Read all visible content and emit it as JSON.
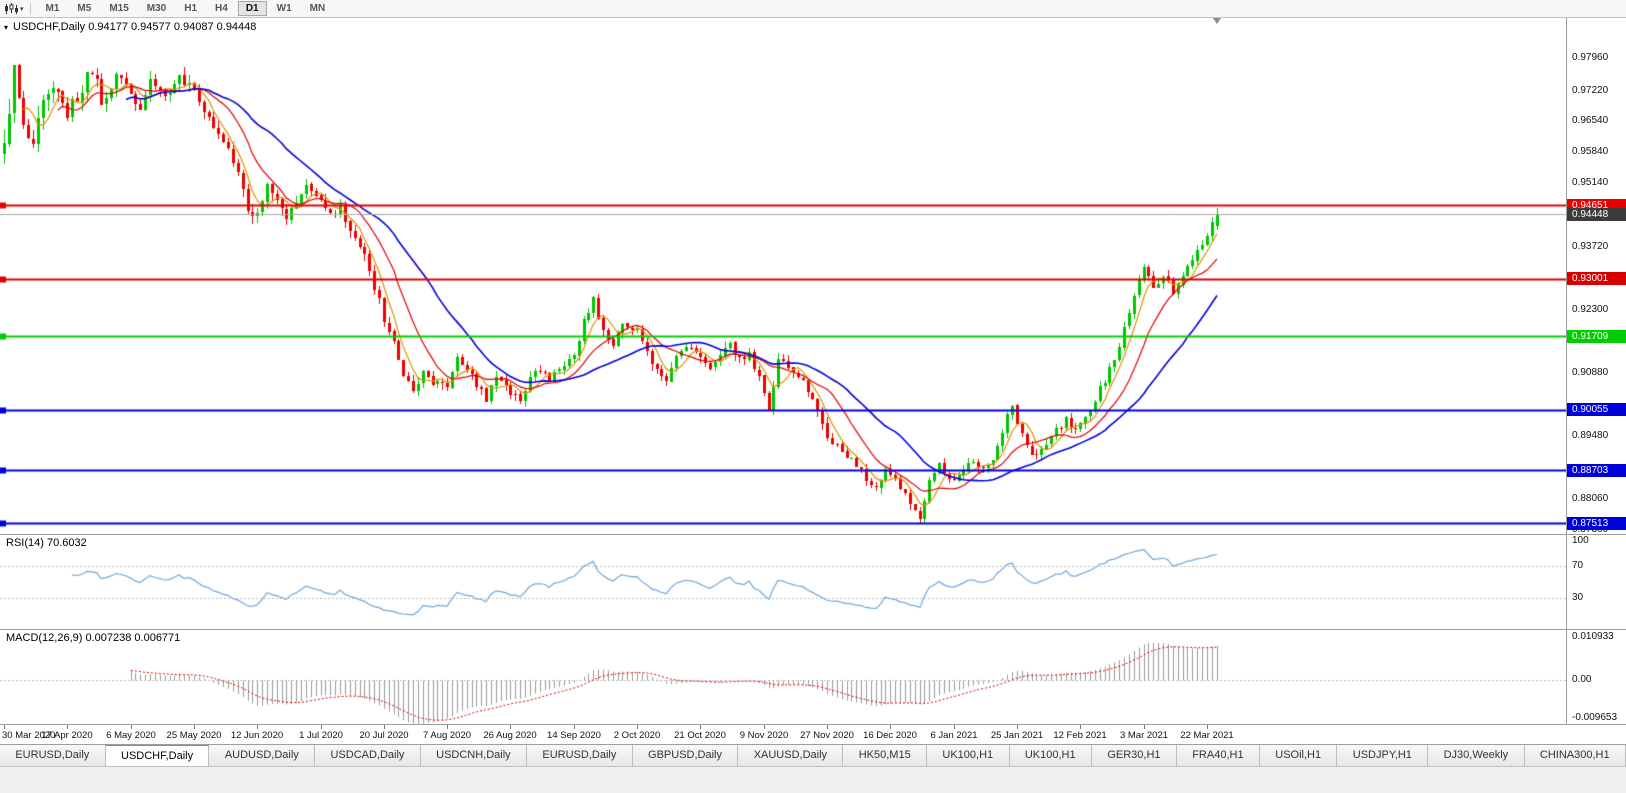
{
  "toolbar": {
    "timeframes": [
      "M1",
      "M5",
      "M15",
      "M30",
      "H1",
      "H4",
      "D1",
      "W1",
      "MN"
    ],
    "active_timeframe": "D1"
  },
  "chart": {
    "symbol": "USDCHF",
    "period": "Daily",
    "title_line": "USDCHF,Daily 0.94177 0.94577 0.94087 0.94448",
    "ohlc": {
      "open": 0.94177,
      "high": 0.94577,
      "low": 0.94087,
      "close": 0.94448
    }
  },
  "chart_data": {
    "type": "candlestick",
    "title": "USDCHF Daily candlestick chart with MAs, horizontal levels, RSI and MACD",
    "n_candles": 250,
    "label_every": 13,
    "x_labels": [
      "30 Mar 2020",
      "17 Apr 2020",
      "6 May 2020",
      "25 May 2020",
      "12 Jun 2020",
      "1 Jul 2020",
      "20 Jul 2020",
      "7 Aug 2020",
      "26 Aug 2020",
      "14 Sep 2020",
      "2 Oct 2020",
      "21 Oct 2020",
      "9 Nov 2020",
      "27 Nov 2020",
      "16 Dec 2020",
      "6 Jan 2021",
      "25 Jan 2021",
      "12 Feb 2021",
      "3 Mar 2021",
      "22 Mar 2021"
    ],
    "price_axis": {
      "max": 0.9885,
      "min": 0.8727,
      "ticks": [
        "0.97960",
        "0.97220",
        "0.96540",
        "0.95840",
        "0.95140",
        "0.94440",
        "0.93720",
        "0.93020",
        "0.92300",
        "0.91600",
        "0.90880",
        "0.90160",
        "0.89480",
        "0.88780",
        "0.88060",
        "0.87360"
      ]
    },
    "close_anchors": [
      [
        0,
        0.958
      ],
      [
        2,
        0.9775
      ],
      [
        4,
        0.965
      ],
      [
        6,
        0.96
      ],
      [
        8,
        0.97
      ],
      [
        10,
        0.972
      ],
      [
        13,
        0.967
      ],
      [
        16,
        0.973
      ],
      [
        18,
        0.977
      ],
      [
        20,
        0.97
      ],
      [
        23,
        0.975
      ],
      [
        26,
        0.972
      ],
      [
        28,
        0.968
      ],
      [
        30,
        0.975
      ],
      [
        33,
        0.972
      ],
      [
        36,
        0.9745
      ],
      [
        39,
        0.972
      ],
      [
        42,
        0.967
      ],
      [
        44,
        0.962
      ],
      [
        46,
        0.958
      ],
      [
        48,
        0.953
      ],
      [
        50,
        0.945
      ],
      [
        52,
        0.944
      ],
      [
        54,
        0.951
      ],
      [
        56,
        0.948
      ],
      [
        58,
        0.944
      ],
      [
        60,
        0.946
      ],
      [
        62,
        0.95
      ],
      [
        65,
        0.947
      ],
      [
        67,
        0.944
      ],
      [
        69,
        0.946
      ],
      [
        71,
        0.941
      ],
      [
        73,
        0.938
      ],
      [
        75,
        0.932
      ],
      [
        77,
        0.925
      ],
      [
        78,
        0.92
      ],
      [
        80,
        0.915
      ],
      [
        82,
        0.908
      ],
      [
        84,
        0.905
      ],
      [
        86,
        0.91
      ],
      [
        88,
        0.907
      ],
      [
        91,
        0.905
      ],
      [
        93,
        0.912
      ],
      [
        95,
        0.91
      ],
      [
        97,
        0.906
      ],
      [
        99,
        0.903
      ],
      [
        101,
        0.908
      ],
      [
        104,
        0.905
      ],
      [
        106,
        0.902
      ],
      [
        108,
        0.907
      ],
      [
        110,
        0.91
      ],
      [
        112,
        0.907
      ],
      [
        114,
        0.91
      ],
      [
        117,
        0.912
      ],
      [
        119,
        0.92
      ],
      [
        121,
        0.926
      ],
      [
        123,
        0.918
      ],
      [
        125,
        0.915
      ],
      [
        127,
        0.92
      ],
      [
        130,
        0.918
      ],
      [
        132,
        0.913
      ],
      [
        134,
        0.91
      ],
      [
        136,
        0.907
      ],
      [
        138,
        0.913
      ],
      [
        140,
        0.915
      ],
      [
        143,
        0.913
      ],
      [
        145,
        0.91
      ],
      [
        147,
        0.913
      ],
      [
        149,
        0.915
      ],
      [
        151,
        0.912
      ],
      [
        153,
        0.913
      ],
      [
        156,
        0.905
      ],
      [
        157,
        0.9
      ],
      [
        159,
        0.912
      ],
      [
        161,
        0.91
      ],
      [
        163,
        0.908
      ],
      [
        165,
        0.905
      ],
      [
        167,
        0.9
      ],
      [
        169,
        0.895
      ],
      [
        171,
        0.892
      ],
      [
        173,
        0.89
      ],
      [
        175,
        0.888
      ],
      [
        177,
        0.885
      ],
      [
        179,
        0.883
      ],
      [
        181,
        0.887
      ],
      [
        182,
        0.886
      ],
      [
        184,
        0.883
      ],
      [
        186,
        0.88
      ],
      [
        188,
        0.876
      ],
      [
        190,
        0.884
      ],
      [
        192,
        0.888
      ],
      [
        194,
        0.886
      ],
      [
        195,
        0.884
      ],
      [
        197,
        0.887
      ],
      [
        199,
        0.889
      ],
      [
        201,
        0.887
      ],
      [
        203,
        0.89
      ],
      [
        205,
        0.896
      ],
      [
        207,
        0.902
      ],
      [
        208,
        0.898
      ],
      [
        210,
        0.893
      ],
      [
        212,
        0.89
      ],
      [
        214,
        0.892
      ],
      [
        216,
        0.896
      ],
      [
        218,
        0.898
      ],
      [
        220,
        0.896
      ],
      [
        221,
        0.897
      ],
      [
        223,
        0.9
      ],
      [
        225,
        0.905
      ],
      [
        227,
        0.91
      ],
      [
        229,
        0.915
      ],
      [
        231,
        0.922
      ],
      [
        233,
        0.93
      ],
      [
        234,
        0.932
      ],
      [
        236,
        0.928
      ],
      [
        238,
        0.931
      ],
      [
        240,
        0.927
      ],
      [
        242,
        0.93
      ],
      [
        244,
        0.934
      ],
      [
        246,
        0.938
      ],
      [
        247,
        0.94
      ],
      [
        249,
        0.9445
      ]
    ],
    "volatility_anchors": [
      [
        0,
        0.004
      ],
      [
        8,
        0.003
      ],
      [
        20,
        0.0022
      ],
      [
        50,
        0.002
      ],
      [
        80,
        0.0018
      ],
      [
        120,
        0.0016
      ],
      [
        249,
        0.0015
      ]
    ],
    "last_candle": {
      "open": 0.94177,
      "high": 0.94577,
      "low": 0.94087,
      "close": 0.94448
    },
    "moving_averages": [
      {
        "period": 5,
        "color": "#DE9300"
      },
      {
        "period": 12,
        "color": "#E00000"
      },
      {
        "period": 26,
        "color": "#0000DC"
      }
    ],
    "hlines": [
      {
        "price": 0.94651,
        "label": "0.94651",
        "color": "#E80000"
      },
      {
        "price": 0.93001,
        "label": "0.93001",
        "color": "#D80000"
      },
      {
        "price": 0.91709,
        "label": "0.91709",
        "color": "#00CE00"
      },
      {
        "price": 0.90055,
        "label": "0.90055",
        "color": "#0000D8"
      },
      {
        "price": 0.88703,
        "label": "0.88703",
        "color": "#0000D8"
      },
      {
        "price": 0.87513,
        "label": "0.87513",
        "color": "#0000D8"
      }
    ],
    "bid": {
      "price": 0.94448,
      "label": "0.94448"
    },
    "rsi": {
      "label": "RSI(14) 70.6032",
      "value": 70.6032,
      "period": 14,
      "levels": [
        "100",
        "70",
        "30"
      ],
      "level_values": [
        100,
        70,
        30
      ],
      "dotted_levels": [
        70,
        30
      ],
      "color": "#6FA8DC"
    },
    "macd": {
      "label": "MACD(12,26,9) 0.007238 0.006771",
      "fast": 12,
      "slow": 26,
      "signal_period": 9,
      "value": 0.007238,
      "signal_value": 0.006771,
      "axis_labels": [
        "0.010933",
        "0.00",
        "-0.009653"
      ],
      "scale_max": 0.010933,
      "scale_min": -0.009653,
      "hist_color": "#9A9A9A",
      "signal_color": "#E00000"
    }
  },
  "colors": {
    "up": "#00C400",
    "down": "#EE0000",
    "bid_line": "#A8A8A8",
    "bid_badge": "#3C3C3C",
    "background": "#FFFFFF"
  },
  "tabs": {
    "active_index": 1,
    "items": [
      "EURUSD,Daily",
      "USDCHF,Daily",
      "AUDUSD,Daily",
      "USDCAD,Daily",
      "USDCNH,Daily",
      "EURUSD,Daily",
      "GBPUSD,Daily",
      "XAUUSD,Daily",
      "HK50,M15",
      "UK100,H1",
      "UK100,H1",
      "GER30,H1",
      "FRA40,H1",
      "USOil,H1",
      "USDJPY,H1",
      "DJ30,Weekly",
      "CHINA300,H1"
    ]
  }
}
